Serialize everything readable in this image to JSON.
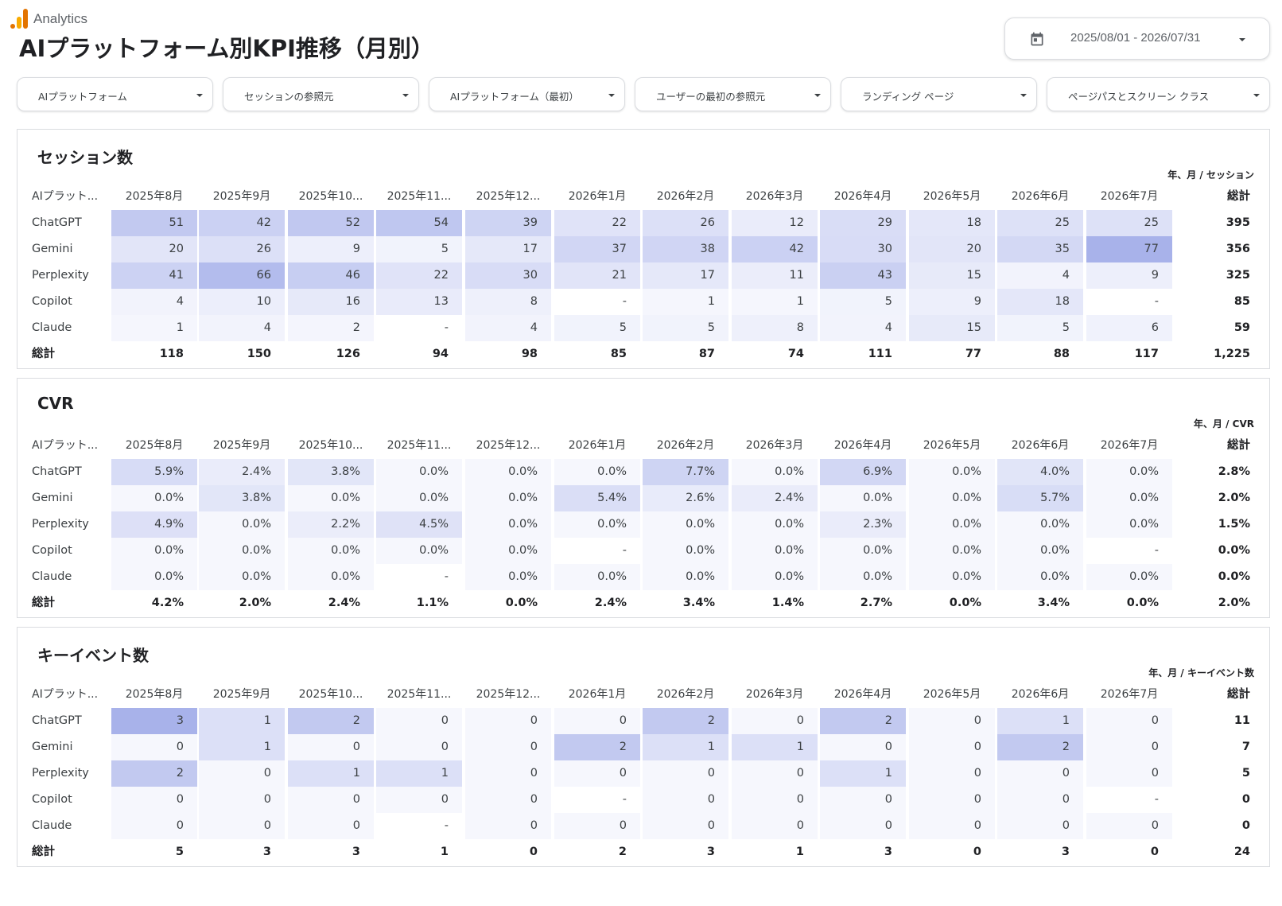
{
  "app": {
    "name": "Analytics"
  },
  "page_title": "AIプラットフォーム別KPI推移（月別）",
  "date_range": "2025/08/01 - 2026/07/31",
  "filters": [
    "AIプラットフォーム",
    "セッションの参照元",
    "AIプラットフォーム（最初）",
    "ユーザーの最初の参照元",
    "ランディング ページ",
    "ページパスとスクリーン クラス"
  ],
  "colors": {
    "heat_max": "#a8b2ea",
    "heat_min": "#f6f7fd",
    "accent_orange": "#e37400",
    "accent_yellow": "#f9ab00"
  },
  "tables": [
    {
      "title": "セッション数",
      "dimension_label": "年、月 / セッション",
      "row_header": "AIプラット...",
      "columns": [
        "2025年8月",
        "2025年9月",
        "2025年10...",
        "2025年11...",
        "2025年12...",
        "2026年1月",
        "2026年2月",
        "2026年3月",
        "2026年4月",
        "2026年5月",
        "2026年6月",
        "2026年7月"
      ],
      "total_header": "総計",
      "max": 77,
      "rows": [
        {
          "label": "ChatGPT",
          "values": [
            "51",
            "42",
            "52",
            "54",
            "39",
            "22",
            "26",
            "12",
            "29",
            "18",
            "25",
            "25"
          ],
          "raw": [
            51,
            42,
            52,
            54,
            39,
            22,
            26,
            12,
            29,
            18,
            25,
            25
          ],
          "total": "395"
        },
        {
          "label": "Gemini",
          "values": [
            "20",
            "26",
            "9",
            "5",
            "17",
            "37",
            "38",
            "42",
            "30",
            "20",
            "35",
            "77"
          ],
          "raw": [
            20,
            26,
            9,
            5,
            17,
            37,
            38,
            42,
            30,
            20,
            35,
            77
          ],
          "total": "356"
        },
        {
          "label": "Perplexity",
          "values": [
            "41",
            "66",
            "46",
            "22",
            "30",
            "21",
            "17",
            "11",
            "43",
            "15",
            "4",
            "9"
          ],
          "raw": [
            41,
            66,
            46,
            22,
            30,
            21,
            17,
            11,
            43,
            15,
            4,
            9
          ],
          "total": "325"
        },
        {
          "label": "Copilot",
          "values": [
            "4",
            "10",
            "16",
            "13",
            "8",
            "-",
            "1",
            "1",
            "5",
            "9",
            "18",
            "-"
          ],
          "raw": [
            4,
            10,
            16,
            13,
            8,
            null,
            1,
            1,
            5,
            9,
            18,
            null
          ],
          "total": "85"
        },
        {
          "label": "Claude",
          "values": [
            "1",
            "4",
            "2",
            "-",
            "4",
            "5",
            "5",
            "8",
            "4",
            "15",
            "5",
            "6"
          ],
          "raw": [
            1,
            4,
            2,
            null,
            4,
            5,
            5,
            8,
            4,
            15,
            5,
            6
          ],
          "total": "59"
        }
      ],
      "sum": {
        "label": "総計",
        "values": [
          "118",
          "150",
          "126",
          "94",
          "98",
          "85",
          "87",
          "74",
          "111",
          "77",
          "88",
          "117"
        ],
        "total": "1,225"
      }
    },
    {
      "title": "CVR",
      "dimension_label": "年、月 / CVR",
      "row_header": "AIプラット...",
      "columns": [
        "2025年8月",
        "2025年9月",
        "2025年10...",
        "2025年11...",
        "2025年12...",
        "2026年1月",
        "2026年2月",
        "2026年3月",
        "2026年4月",
        "2026年5月",
        "2026年6月",
        "2026年7月"
      ],
      "total_header": "総計",
      "max": 15,
      "rows": [
        {
          "label": "ChatGPT",
          "values": [
            "5.9%",
            "2.4%",
            "3.8%",
            "0.0%",
            "0.0%",
            "0.0%",
            "7.7%",
            "0.0%",
            "6.9%",
            "0.0%",
            "4.0%",
            "0.0%"
          ],
          "raw": [
            5.9,
            2.4,
            3.8,
            0,
            0,
            0,
            7.7,
            0,
            6.9,
            0,
            4.0,
            0
          ],
          "total": "2.8%"
        },
        {
          "label": "Gemini",
          "values": [
            "0.0%",
            "3.8%",
            "0.0%",
            "0.0%",
            "0.0%",
            "5.4%",
            "2.6%",
            "2.4%",
            "0.0%",
            "0.0%",
            "5.7%",
            "0.0%"
          ],
          "raw": [
            0,
            3.8,
            0,
            0,
            0,
            5.4,
            2.6,
            2.4,
            0,
            0,
            5.7,
            0
          ],
          "total": "2.0%"
        },
        {
          "label": "Perplexity",
          "values": [
            "4.9%",
            "0.0%",
            "2.2%",
            "4.5%",
            "0.0%",
            "0.0%",
            "0.0%",
            "0.0%",
            "2.3%",
            "0.0%",
            "0.0%",
            "0.0%"
          ],
          "raw": [
            4.9,
            0,
            2.2,
            4.5,
            0,
            0,
            0,
            0,
            2.3,
            0,
            0,
            0
          ],
          "total": "1.5%"
        },
        {
          "label": "Copilot",
          "values": [
            "0.0%",
            "0.0%",
            "0.0%",
            "0.0%",
            "0.0%",
            "-",
            "0.0%",
            "0.0%",
            "0.0%",
            "0.0%",
            "0.0%",
            "-"
          ],
          "raw": [
            0,
            0,
            0,
            0,
            0,
            null,
            0,
            0,
            0,
            0,
            0,
            null
          ],
          "total": "0.0%"
        },
        {
          "label": "Claude",
          "values": [
            "0.0%",
            "0.0%",
            "0.0%",
            "-",
            "0.0%",
            "0.0%",
            "0.0%",
            "0.0%",
            "0.0%",
            "0.0%",
            "0.0%",
            "0.0%"
          ],
          "raw": [
            0,
            0,
            0,
            null,
            0,
            0,
            0,
            0,
            0,
            0,
            0,
            0
          ],
          "total": "0.0%"
        }
      ],
      "sum": {
        "label": "総計",
        "values": [
          "4.2%",
          "2.0%",
          "2.4%",
          "1.1%",
          "0.0%",
          "2.4%",
          "3.4%",
          "1.4%",
          "2.7%",
          "0.0%",
          "3.4%",
          "0.0%"
        ],
        "total": "2.0%"
      }
    },
    {
      "title": "キーイベント数",
      "dimension_label": "年、月 / キーイベント数",
      "row_header": "AIプラット...",
      "columns": [
        "2025年8月",
        "2025年9月",
        "2025年10...",
        "2025年11...",
        "2025年12...",
        "2026年1月",
        "2026年2月",
        "2026年3月",
        "2026年4月",
        "2026年5月",
        "2026年6月",
        "2026年7月"
      ],
      "total_header": "総計",
      "max": 3,
      "rows": [
        {
          "label": "ChatGPT",
          "values": [
            "3",
            "1",
            "2",
            "0",
            "0",
            "0",
            "2",
            "0",
            "2",
            "0",
            "1",
            "0"
          ],
          "raw": [
            3,
            1,
            2,
            0,
            0,
            0,
            2,
            0,
            2,
            0,
            1,
            0
          ],
          "total": "11"
        },
        {
          "label": "Gemini",
          "values": [
            "0",
            "1",
            "0",
            "0",
            "0",
            "2",
            "1",
            "1",
            "0",
            "0",
            "2",
            "0"
          ],
          "raw": [
            0,
            1,
            0,
            0,
            0,
            2,
            1,
            1,
            0,
            0,
            2,
            0
          ],
          "total": "7"
        },
        {
          "label": "Perplexity",
          "values": [
            "2",
            "0",
            "1",
            "1",
            "0",
            "0",
            "0",
            "0",
            "1",
            "0",
            "0",
            "0"
          ],
          "raw": [
            2,
            0,
            1,
            1,
            0,
            0,
            0,
            0,
            1,
            0,
            0,
            0
          ],
          "total": "5"
        },
        {
          "label": "Copilot",
          "values": [
            "0",
            "0",
            "0",
            "0",
            "0",
            "-",
            "0",
            "0",
            "0",
            "0",
            "0",
            "-"
          ],
          "raw": [
            0,
            0,
            0,
            0,
            0,
            null,
            0,
            0,
            0,
            0,
            0,
            null
          ],
          "total": "0"
        },
        {
          "label": "Claude",
          "values": [
            "0",
            "0",
            "0",
            "-",
            "0",
            "0",
            "0",
            "0",
            "0",
            "0",
            "0",
            "0"
          ],
          "raw": [
            0,
            0,
            0,
            null,
            0,
            0,
            0,
            0,
            0,
            0,
            0,
            0
          ],
          "total": "0"
        }
      ],
      "sum": {
        "label": "総計",
        "values": [
          "5",
          "3",
          "3",
          "1",
          "0",
          "2",
          "3",
          "1",
          "3",
          "0",
          "3",
          "0"
        ],
        "total": "24"
      }
    }
  ]
}
